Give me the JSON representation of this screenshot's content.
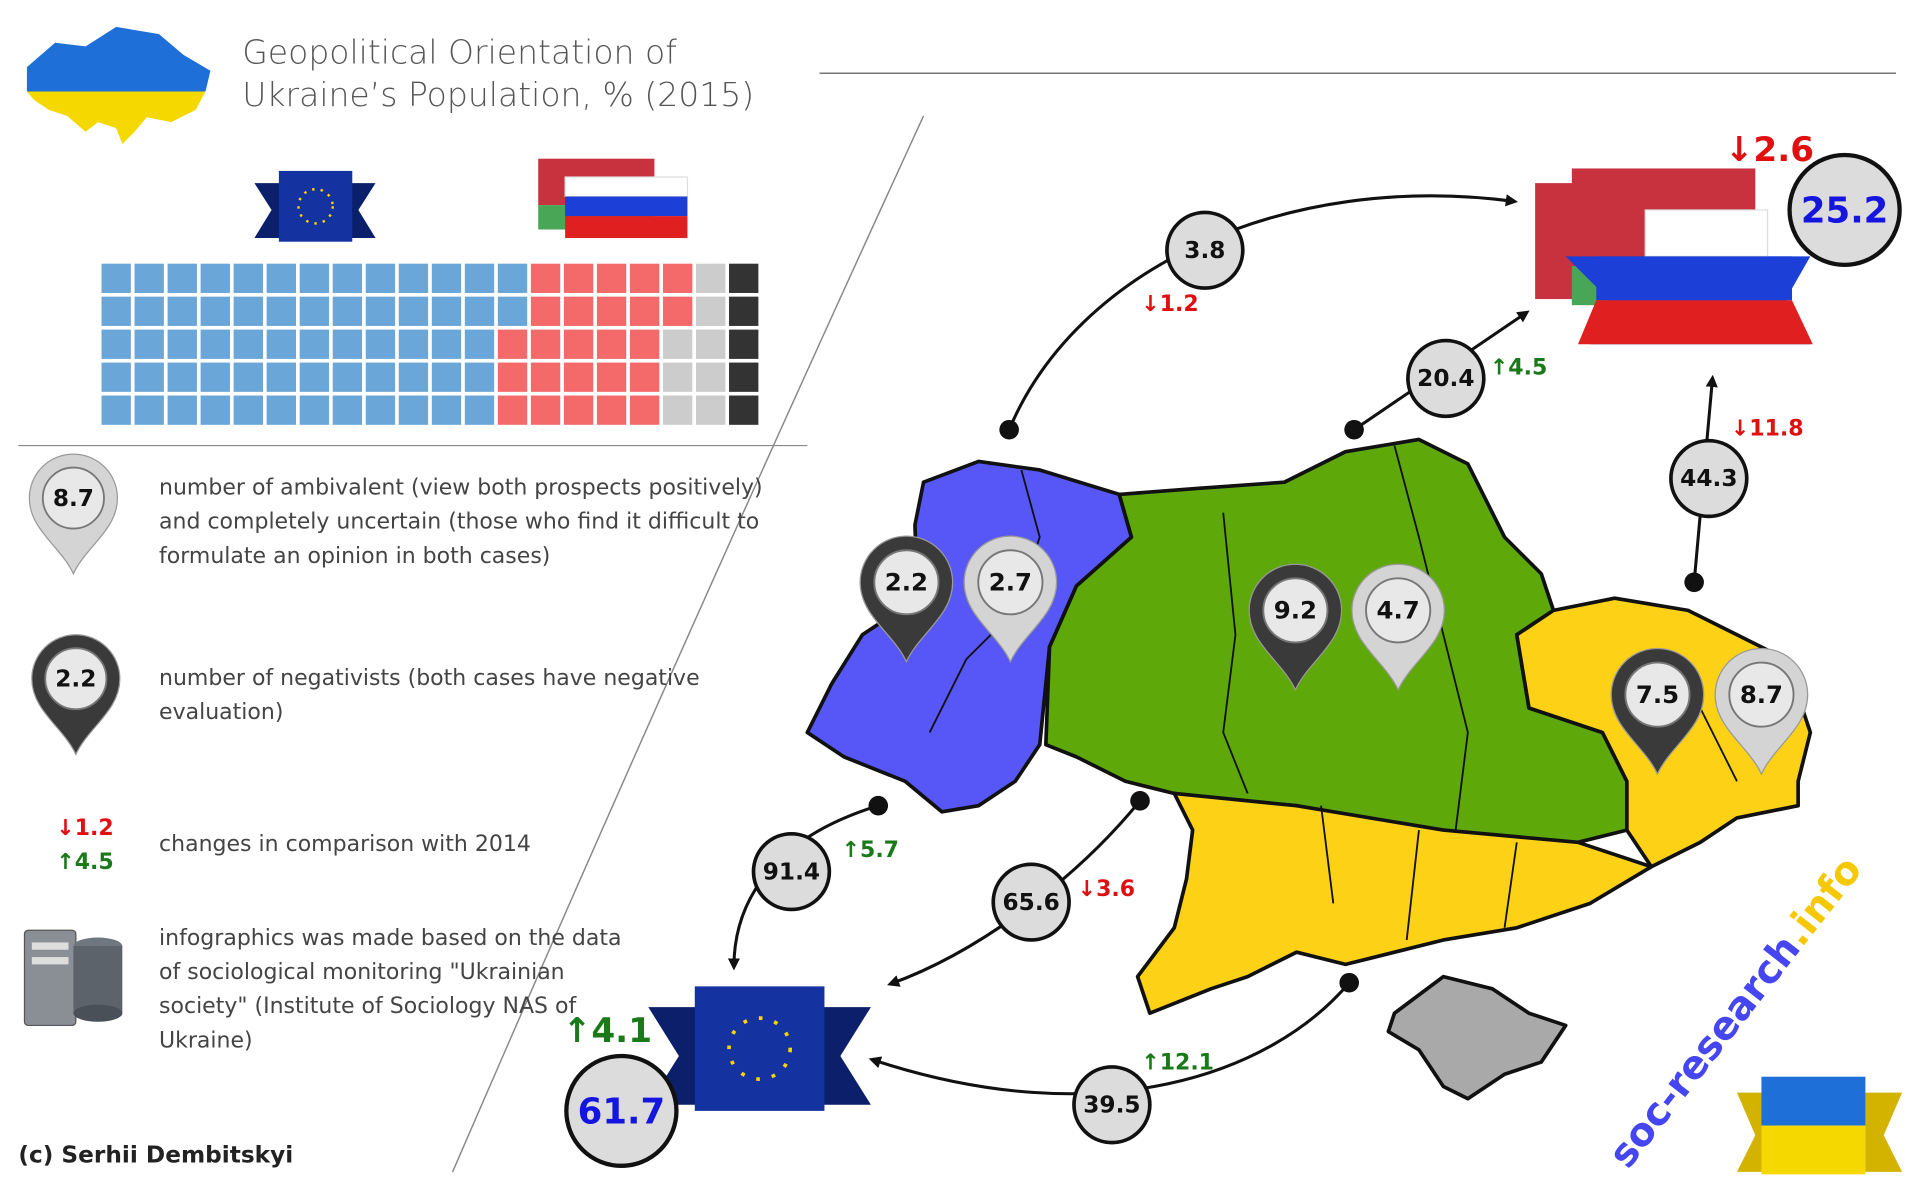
{
  "header": {
    "title": "Geopolitical Orientation of Ukraine’s Population, % (2015)"
  },
  "results": {
    "eu": {
      "value": 61.7,
      "change": "↑4.1",
      "change_color": "#1a7a1a"
    },
    "russia": {
      "value": 25.2,
      "change": "↓2.6",
      "change_color": "#e01010"
    }
  },
  "waffle": {
    "colors": [
      "#6ba6d8",
      "#f46a6a",
      "#cccccc",
      "#333333"
    ]
  },
  "flows": [
    {
      "value": 3.8,
      "change": "↓1.2",
      "change_color": "#e01010"
    },
    {
      "value": 20.4,
      "change": "↑4.5",
      "change_color": "#1a7a1a"
    },
    {
      "value": 44.3,
      "change": "↓11.8",
      "change_color": "#e01010"
    },
    {
      "value": 91.4,
      "change": "↑5.7",
      "change_color": "#1a7a1a"
    },
    {
      "value": 65.6,
      "change": "↓3.6",
      "change_color": "#e01010"
    },
    {
      "value": 39.5,
      "change": "↑12.1",
      "change_color": "#1a7a1a"
    }
  ],
  "pins": [
    {
      "value": 2.2,
      "color": "#3a3a3a"
    },
    {
      "value": 2.7,
      "color": "#d4d4d4"
    },
    {
      "value": 9.2,
      "color": "#3a3a3a"
    },
    {
      "value": 4.7,
      "color": "#d4d4d4"
    },
    {
      "value": 7.5,
      "color": "#3a3a3a"
    },
    {
      "value": 8.7,
      "color": "#d4d4d4"
    }
  ],
  "legend": [
    {
      "pin": 8.7,
      "pin_color": "#d4d4d4",
      "text": "number of ambivalent (view both prospects positively) and completely uncertain (those who find it difficult to formulate an opinion in both cases)"
    },
    {
      "pin": 2.2,
      "pin_color": "#3a3a3a",
      "text": "number of negativists (both cases have negative evaluation)"
    },
    {
      "changes": [
        {
          "text": "↓1.2",
          "color": "#e01010"
        },
        {
          "text": "↑4.5",
          "color": "#1a7a1a"
        }
      ],
      "text": "changes in comparison with 2014"
    },
    {
      "text": "infographics was made based on the data of sociological monitoring \"Ukrainian society\" (Institute of Sociology NAS of Ukraine)"
    }
  ],
  "credit": "(c) Serhii Dembitskyi",
  "watermark": [
    "soc-research",
    ".info"
  ]
}
